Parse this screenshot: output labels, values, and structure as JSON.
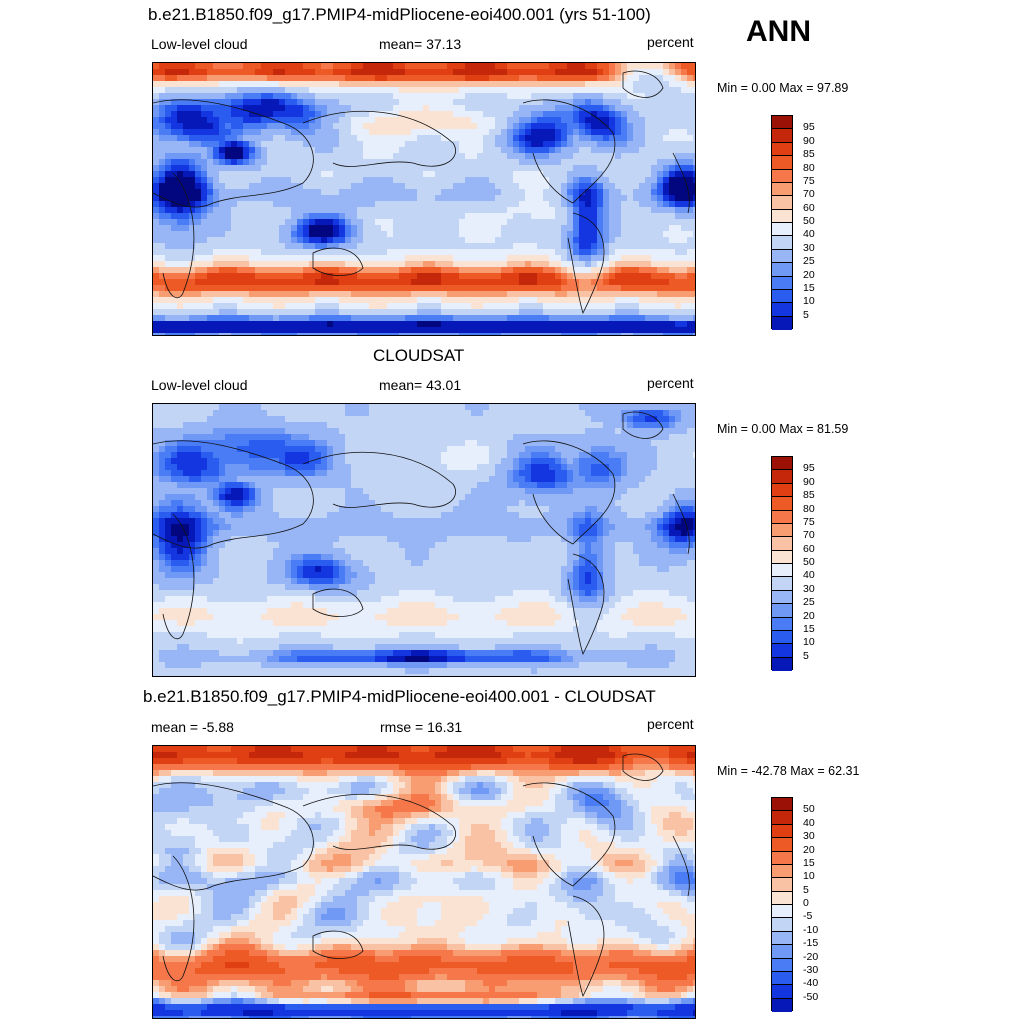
{
  "season": "ANN",
  "palettes": {
    "abs": [
      "#02077f",
      "#0718b8",
      "#1336e0",
      "#2b5cf0",
      "#4a7cf5",
      "#7099f5",
      "#98b6f5",
      "#c2d5f5",
      "#e7effc",
      "#fbe3d3",
      "#fac2a4",
      "#f89c72",
      "#f5774a",
      "#ee5a26",
      "#df3f13",
      "#c5270a",
      "#9c1106"
    ],
    "diff": [
      "#02077f",
      "#0718b8",
      "#1336e0",
      "#2b5cf0",
      "#4a7cf5",
      "#7099f5",
      "#98b6f5",
      "#c2d5f5",
      "#e7effc",
      "#fbe3d3",
      "#fac2a4",
      "#f89c72",
      "#f5774a",
      "#ee5a26",
      "#df3f13",
      "#c5270a",
      "#9c1106"
    ]
  },
  "panels": [
    {
      "id": "model",
      "title": "b.e21.B1850.f09_g17.PMIP4-midPliocene-eoi400.001 (yrs 51-100)",
      "left_label": "Low-level cloud",
      "center_label": "mean=  37.13",
      "right_label": "percent",
      "minmax": "Min =   0.00 Max =  97.89",
      "levels": [
        "95",
        "90",
        "85",
        "80",
        "75",
        "70",
        "60",
        "50",
        "40",
        "30",
        "25",
        "20",
        "15",
        "10",
        "5"
      ],
      "field": "model"
    },
    {
      "id": "obs",
      "title": "CLOUDSAT",
      "left_label": "Low-level cloud",
      "center_label": "mean=  43.01",
      "right_label": "percent",
      "minmax": "Min =   0.00 Max =  81.59",
      "levels": [
        "95",
        "90",
        "85",
        "80",
        "75",
        "70",
        "60",
        "50",
        "40",
        "30",
        "25",
        "20",
        "15",
        "10",
        "5"
      ],
      "field": "obs"
    },
    {
      "id": "diff",
      "title": "b.e21.B1850.f09_g17.PMIP4-midPliocene-eoi400.001 - CLOUDSAT",
      "left_label": "mean =  -5.88",
      "center_label": "rmse =  16.31",
      "right_label": "percent",
      "minmax": "Min = -42.78 Max =  62.31",
      "levels": [
        "50",
        "40",
        "30",
        "20",
        "15",
        "10",
        "5",
        "0",
        "-5",
        "-10",
        "-15",
        "-20",
        "-30",
        "-40",
        "-50"
      ],
      "field": "diff"
    }
  ]
}
